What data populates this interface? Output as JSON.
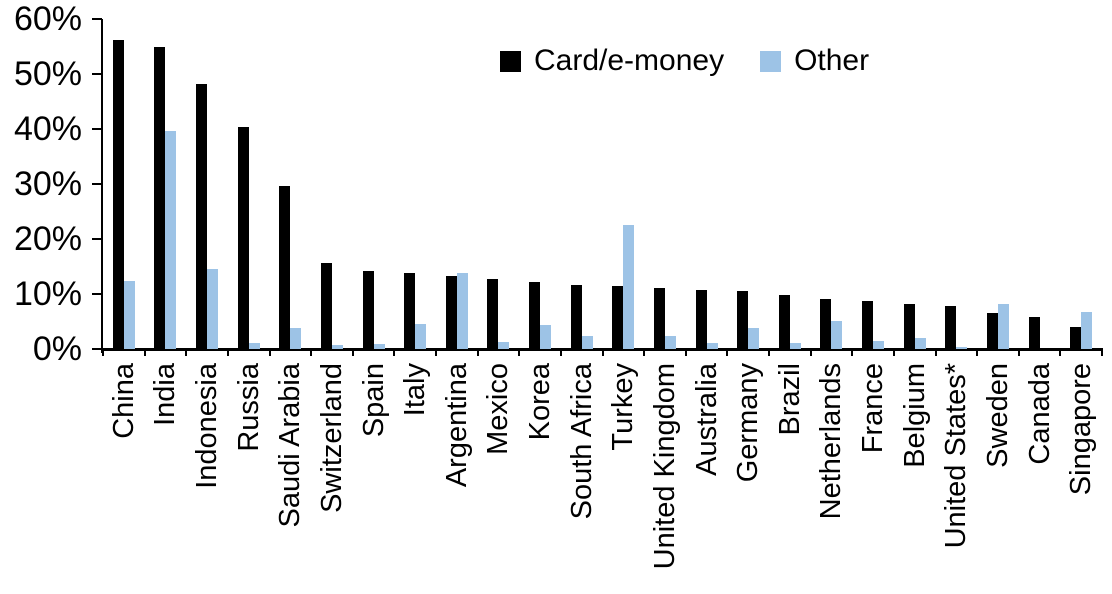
{
  "chart_data": {
    "type": "bar",
    "title": "",
    "xlabel": "",
    "ylabel": "",
    "ylim": [
      0,
      60
    ],
    "y_tick_step": 10,
    "y_tick_labels": [
      "0%",
      "10%",
      "20%",
      "30%",
      "40%",
      "50%",
      "60%"
    ],
    "grid": false,
    "legend_position": "top-center",
    "categories": [
      "China",
      "India",
      "Indonesia",
      "Russia",
      "Saudi Arabia",
      "Switzerland",
      "Spain",
      "Italy",
      "Argentina",
      "Mexico",
      "Korea",
      "South Africa",
      "Turkey",
      "United Kingdom",
      "Australia",
      "Germany",
      "Brazil",
      "Netherlands",
      "France",
      "Belgium",
      "United States*",
      "Sweden",
      "Canada",
      "Singapore"
    ],
    "series": [
      {
        "name": "Card/e-money",
        "color": "#000000",
        "values": [
          56.1,
          54.9,
          48.2,
          40.4,
          29.7,
          15.6,
          14.1,
          13.9,
          13.2,
          12.8,
          12.1,
          11.7,
          11.5,
          11.0,
          10.8,
          10.5,
          9.9,
          9.1,
          8.7,
          8.2,
          7.9,
          6.6,
          5.9,
          4.0
        ]
      },
      {
        "name": "Other",
        "color": "#9DC3E6",
        "values": [
          12.3,
          39.6,
          14.5,
          1.0,
          3.9,
          0.8,
          0.9,
          4.5,
          13.8,
          1.3,
          4.4,
          2.3,
          22.5,
          2.3,
          1.0,
          3.9,
          1.1,
          5.0,
          1.5,
          2.0,
          0.3,
          8.1,
          0.0,
          6.7
        ]
      }
    ]
  }
}
